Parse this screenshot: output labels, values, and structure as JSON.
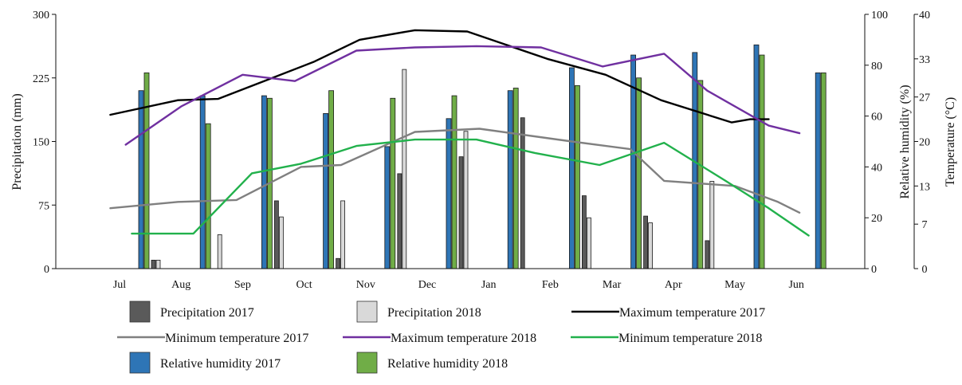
{
  "chart_data": {
    "type": "bar+line",
    "months": [
      "Jul",
      "Aug",
      "Sep",
      "Oct",
      "Nov",
      "Dec",
      "Jan",
      "Feb",
      "Mar",
      "Apr",
      "May",
      "Jun"
    ],
    "axes": {
      "left": {
        "label": "Precipitation (mm)",
        "ticks": [
          0,
          75,
          150,
          225,
          300
        ],
        "range": [
          0,
          300
        ]
      },
      "right_inner": {
        "label": "Relative humidity (%)",
        "ticks": [
          0,
          20,
          40,
          60,
          80,
          100
        ],
        "range": [
          0,
          100
        ]
      },
      "right_outer": {
        "label": "Temperature (°C)",
        "range": [
          0,
          40
        ],
        "ticks": [
          {
            "value": 0,
            "label": "0"
          },
          {
            "value": 7,
            "label": "7"
          },
          {
            "value": 13,
            "label": "13"
          },
          {
            "value": 20,
            "label": "20"
          },
          {
            "value": 27,
            "label": "27"
          },
          {
            "value": 33,
            "label": "33"
          },
          {
            "value": 40,
            "label": "40"
          }
        ]
      }
    },
    "bar_series": [
      {
        "name": "Relative humidity 2017",
        "axis": "right_inner",
        "color": "#2e75b6",
        "values": [
          70,
          68,
          68,
          61,
          48,
          59,
          70,
          79,
          84,
          85,
          88,
          77
        ]
      },
      {
        "name": "Relative humidity 2018",
        "axis": "right_inner",
        "color": "#70ad47",
        "values": [
          77,
          57,
          67,
          70,
          67,
          68,
          71,
          72,
          75,
          74,
          84,
          77
        ]
      },
      {
        "name": "Precipitation 2017",
        "axis": "left",
        "color": "#5a5a5a",
        "values": [
          10,
          0,
          80,
          12,
          112,
          132,
          178,
          86,
          62,
          33,
          0,
          0
        ]
      },
      {
        "name": "Precipitation 2018",
        "axis": "left",
        "color": "#d9d9d9",
        "values": [
          10,
          40,
          61,
          80,
          235,
          162,
          0,
          60,
          54,
          103,
          0,
          0
        ]
      }
    ],
    "line_series": [
      {
        "name": "Maximum temperature 2017",
        "axis": "right_outer",
        "color": "#000000",
        "x": [
          -0.15,
          0.95,
          1.6,
          2.35,
          3.15,
          3.9,
          4.8,
          5.65,
          6.95,
          7.9,
          8.8,
          9.95,
          10.25,
          10.55
        ],
        "y": [
          24.2,
          26.5,
          26.7,
          29.5,
          32.5,
          36.0,
          37.5,
          37.3,
          33.0,
          30.5,
          26.5,
          23.0,
          23.5,
          23.5
        ]
      },
      {
        "name": "Minimum temperature 2017",
        "axis": "right_outer",
        "color": "#808080",
        "x": [
          -0.15,
          0.95,
          1.9,
          2.95,
          3.6,
          4.8,
          5.85,
          7.35,
          8.3,
          8.85,
          10.0,
          10.7,
          11.05
        ],
        "y": [
          9.5,
          10.5,
          10.8,
          16.0,
          16.3,
          21.5,
          22.0,
          20.0,
          18.8,
          13.8,
          13.0,
          10.5,
          8.8
        ]
      },
      {
        "name": "Maximum temperature 2018",
        "axis": "right_outer",
        "color": "#7030a0",
        "x": [
          0.1,
          1.0,
          2.0,
          2.85,
          3.85,
          4.8,
          5.8,
          6.85,
          7.85,
          8.85,
          9.55,
          10.55,
          11.05
        ],
        "y": [
          19.5,
          25.5,
          30.5,
          29.5,
          34.3,
          34.8,
          35.0,
          34.8,
          31.8,
          33.8,
          28.0,
          22.5,
          21.3
        ]
      },
      {
        "name": "Minimum temperature 2018",
        "axis": "right_outer",
        "color": "#22b14c",
        "x": [
          0.2,
          1.2,
          2.15,
          2.95,
          3.85,
          4.8,
          5.8,
          6.75,
          7.8,
          8.85,
          9.85,
          10.55,
          11.2
        ],
        "y": [
          5.5,
          5.5,
          15.0,
          16.5,
          19.3,
          20.3,
          20.3,
          18.2,
          16.3,
          19.8,
          13.8,
          9.5,
          5.2
        ]
      }
    ],
    "legend": {
      "placement": "bottom",
      "entries": [
        {
          "label": "Precipitation 2017",
          "kind": "bar",
          "color": "#5a5a5a"
        },
        {
          "label": "Precipitation 2018",
          "kind": "bar",
          "color": "#d9d9d9"
        },
        {
          "label": "Maximum temperature 2017",
          "kind": "line",
          "color": "#000000"
        },
        {
          "label": "Minimum temperature 2017",
          "kind": "line",
          "color": "#808080"
        },
        {
          "label": "Maximum temperature 2018",
          "kind": "line",
          "color": "#7030a0"
        },
        {
          "label": "Minimum temperature 2018",
          "kind": "line",
          "color": "#22b14c"
        },
        {
          "label": "Relative humidity 2017",
          "kind": "bar",
          "color": "#2e75b6"
        },
        {
          "label": "Relative humidity 2018",
          "kind": "bar",
          "color": "#70ad47"
        }
      ]
    },
    "grid": false
  }
}
